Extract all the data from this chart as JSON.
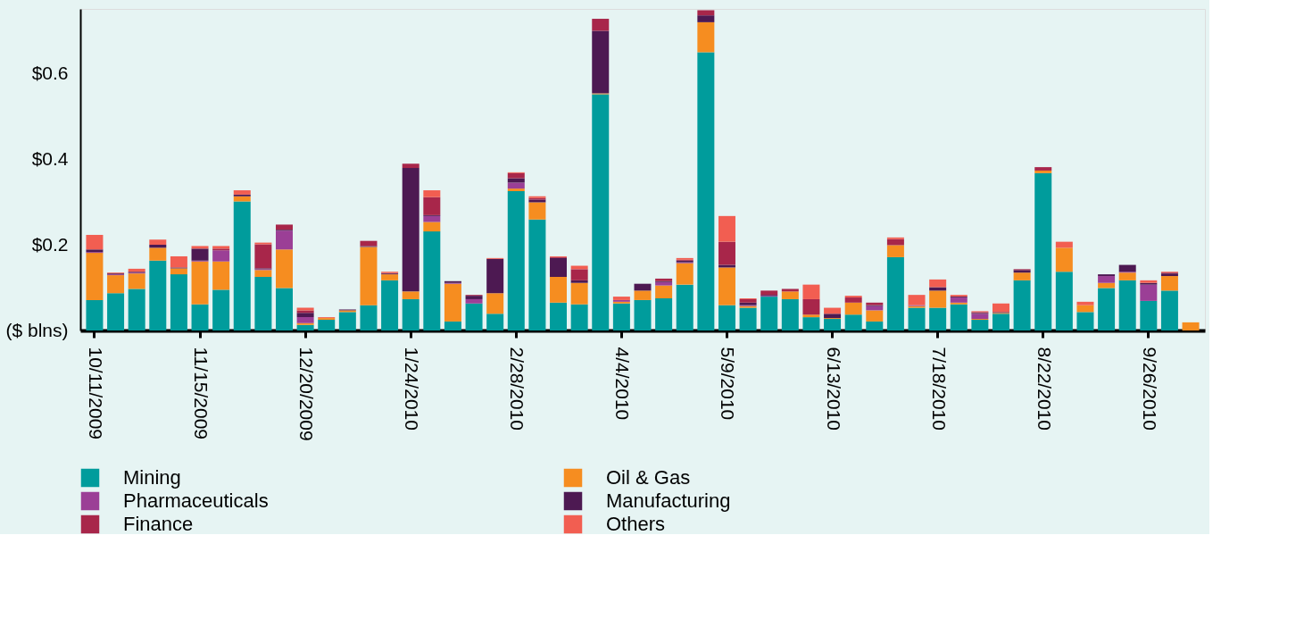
{
  "chart_data": {
    "type": "bar",
    "stacked": true,
    "grid": false,
    "legend": "bottom",
    "categories": [
      "10/11/2009",
      null,
      null,
      null,
      null,
      "11/15/2009",
      null,
      null,
      null,
      null,
      "12/20/2009",
      null,
      null,
      null,
      null,
      "1/24/2010",
      null,
      null,
      null,
      null,
      "2/28/2010",
      null,
      null,
      null,
      null,
      "4/4/2010",
      null,
      null,
      null,
      null,
      "5/9/2010",
      null,
      null,
      null,
      null,
      "6/13/2010",
      null,
      null,
      null,
      null,
      "7/18/2010",
      null,
      null,
      null,
      null,
      "8/22/2010",
      null,
      null,
      null,
      null,
      "9/26/2010",
      null,
      null
    ],
    "ylim": [
      0,
      0.75
    ],
    "yticks": [
      {
        "value": 0,
        "label": "($ blns)"
      },
      {
        "value": 0.2,
        "label": "$0.2"
      },
      {
        "value": 0.4,
        "label": "$0.4"
      },
      {
        "value": 0.6,
        "label": "$0.6"
      }
    ],
    "series": [
      {
        "name": "Mining",
        "color": "#009c9c",
        "values": [
          0.071,
          0.087,
          0.097,
          0.163,
          0.131,
          0.061,
          0.095,
          0.301,
          0.125,
          0.099,
          0.013,
          0.025,
          0.043,
          0.059,
          0.117,
          0.073,
          0.231,
          0.021,
          0.063,
          0.039,
          0.325,
          0.259,
          0.065,
          0.061,
          0.551,
          0.063,
          0.071,
          0.075,
          0.107,
          0.649,
          0.059,
          0.053,
          0.079,
          0.073,
          0.031,
          0.027,
          0.037,
          0.021,
          0.171,
          0.053,
          0.053,
          0.061,
          0.025,
          0.039,
          0.117,
          0.367,
          0.137,
          0.043,
          0.099,
          0.117,
          0.069,
          0.093,
          0
        ]
      },
      {
        "name": "Oil & Gas",
        "color": "#f68d20",
        "values": [
          0.11,
          0.042,
          0.036,
          0.03,
          0.014,
          0.1,
          0.066,
          0.012,
          0.016,
          0.09,
          0.004,
          0.004,
          0.004,
          0.136,
          0.014,
          0.018,
          0.022,
          0.088,
          0,
          0.048,
          0.006,
          0.04,
          0.06,
          0.05,
          0.002,
          0.004,
          0.022,
          0.03,
          0.05,
          0.07,
          0.088,
          0.004,
          0,
          0.018,
          0.006,
          0.002,
          0.028,
          0.026,
          0.028,
          0.004,
          0.04,
          0.004,
          0.002,
          0.002,
          0.018,
          0.006,
          0.056,
          0.016,
          0.012,
          0.018,
          0,
          0.034,
          0.019
        ]
      },
      {
        "name": "Pharmaceuticals",
        "color": "#9b3f96",
        "values": [
          0.002,
          0.002,
          0.002,
          0,
          0,
          0.002,
          0.026,
          0,
          0.002,
          0.044,
          0.014,
          0,
          0,
          0,
          0,
          0,
          0.014,
          0.002,
          0.01,
          0,
          0.014,
          0,
          0,
          0,
          0,
          0.004,
          0,
          0.008,
          0.002,
          0,
          0,
          0.002,
          0.002,
          0,
          0,
          0,
          0,
          0.01,
          0,
          0.002,
          0,
          0.012,
          0.012,
          0,
          0,
          0,
          0,
          0,
          0.016,
          0.002,
          0.038,
          0,
          0
        ]
      },
      {
        "name": "Manufacturing",
        "color": "#4d1952",
        "values": [
          0.006,
          0.002,
          0.002,
          0.007,
          0.002,
          0.028,
          0,
          0.004,
          0.002,
          0.002,
          0.01,
          0,
          0.002,
          0.002,
          0.002,
          0.288,
          0.002,
          0.004,
          0.008,
          0.08,
          0.01,
          0.006,
          0.044,
          0.006,
          0.146,
          0,
          0.016,
          0.002,
          0.004,
          0.016,
          0.006,
          0.006,
          0.002,
          0,
          0,
          0.01,
          0,
          0.002,
          null,
          0,
          0.008,
          0.002,
          0.002,
          0.002,
          0.006,
          0,
          0,
          0,
          0.004,
          0.016,
          0.004,
          0.006,
          0
        ]
      },
      {
        "name": "Finance",
        "color": "#a8264a",
        "values": [
          0,
          0,
          0,
          null,
          0,
          0,
          0.004,
          0,
          0.056,
          0.012,
          0.006,
          0,
          0,
          0.012,
          0.001,
          0.01,
          0.042,
          0,
          0.002,
          0,
          0.012,
          0.004,
          0.002,
          0.026,
          0.028,
          0,
          0,
          0.006,
          0.002,
          0.012,
          0.054,
          0.008,
          0.01,
          0.006,
          0.036,
          0,
          0.012,
          0.006,
          0.014,
          0,
          0,
          0,
          0.002,
          0,
          0.002,
          0.008,
          0,
          0,
          0,
          0,
          0,
          0.002,
          0
        ]
      },
      {
        "name": "Others",
        "color": "#f25e51",
        "values": [
          0.034,
          0.002,
          0.007,
          0.012,
          0.026,
          0.006,
          0.006,
          0.01,
          0.004,
          0,
          0.006,
          0.002,
          0,
          0,
          0.003,
          0,
          0.016,
          0,
          0,
          0.002,
          0.002,
          0.004,
          0.002,
          0.008,
          0,
          0.008,
          0,
          0,
          0.004,
          0,
          0.06,
          0.002,
          0,
          0,
          0.034,
          0.014,
          0.004,
          0,
          0.004,
          0.024,
          0.018,
          0.004,
          0.002,
          0.02,
          0,
          0,
          0.014,
          0.008,
          0,
          0,
          0.006,
          0.002,
          0
        ]
      }
    ]
  }
}
